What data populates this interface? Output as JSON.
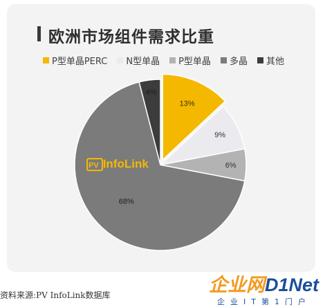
{
  "chart_data": {
    "type": "pie",
    "title": "欧洲市场组件需求比重",
    "categories": [
      "P型单晶PERC",
      "N型单晶",
      "P型单晶",
      "多晶",
      "其他"
    ],
    "values": [
      13,
      9,
      6,
      68,
      4
    ],
    "value_labels": [
      "13%",
      "9%",
      "6%",
      "68%",
      "4%"
    ],
    "colors": [
      "#f5b800",
      "#ebebef",
      "#b3b3b3",
      "#7b7b7b",
      "#3c3c3c"
    ],
    "exploded": [
      true,
      false,
      false,
      false,
      false
    ],
    "legend_position": "top",
    "start": "12 o'clock, clockwise"
  },
  "logo": {
    "text": "PV InfoLink",
    "color": "#f5b800"
  },
  "source": "资料来源:PV InfoLink数据库",
  "watermark": {
    "main_cn": "企业网",
    "main_d": "D",
    "main_net": "1Net",
    "sub": "企业IT第1门户"
  }
}
